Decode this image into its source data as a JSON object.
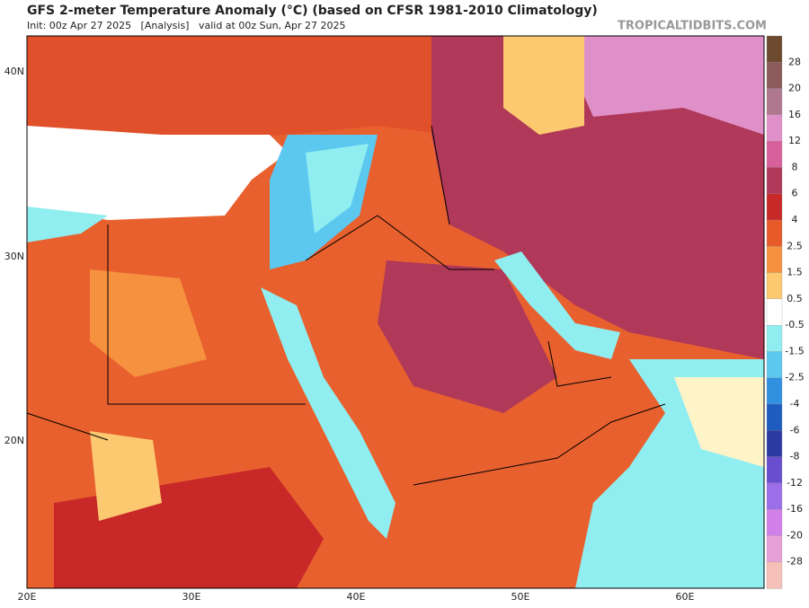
{
  "header": {
    "title": "GFS 2-meter Temperature Anomaly (°C) (based on CFSR 1981-2010 Climatology)",
    "subtitle": "Init: 00z Apr 27 2025   [Analysis]   valid at 00z Sun, Apr 27 2025",
    "watermark": "TROPICALTIDBITS.COM"
  },
  "map": {
    "lat_labels": [
      "40N",
      "30N",
      "20N"
    ],
    "lon_labels": [
      "20E",
      "30E",
      "40E",
      "50E",
      "60E"
    ]
  },
  "colorbar": {
    "labels": [
      "28",
      "20",
      "16",
      "12",
      "8",
      "6",
      "4",
      "2.5",
      "1.5",
      "0.5",
      "-0.5",
      "-1.5",
      "-2.5",
      "-4",
      "-6",
      "-8",
      "-12",
      "-16",
      "-20",
      "-28"
    ],
    "colors": [
      "#6b4a2e",
      "#8c5a5a",
      "#b0788e",
      "#e090c8",
      "#d8609a",
      "#b03858",
      "#c82828",
      "#e85a2a",
      "#f5913f",
      "#fcc870",
      "#ffffff",
      "#90eef0",
      "#5cc8f0",
      "#3290e0",
      "#1f5cc0",
      "#2a3aa0",
      "#6a4ed0",
      "#9c6ee8",
      "#d080e8",
      "#e8a0d8",
      "#f5c0b8"
    ]
  }
}
